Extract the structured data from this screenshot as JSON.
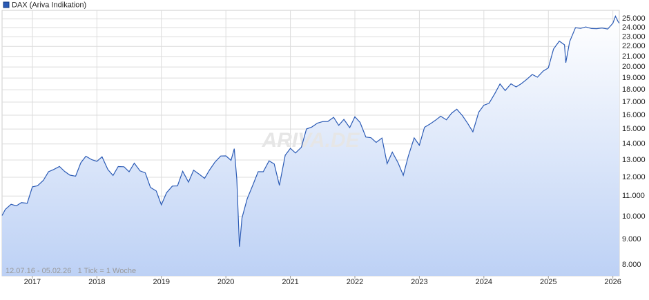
{
  "chart_data": {
    "type": "line",
    "legend": "DAX (Ariva Indikation)",
    "watermark": "ARIVA.DE",
    "footnote": "12.07.16 - 05.02.26   1 Tick = 1 Woche",
    "log_scale": true,
    "grid": true,
    "color": "#2a5ab5",
    "fill_gradient": [
      "#ffffff",
      "#bdd1f5"
    ],
    "xlim": [
      2016.53,
      2026.1
    ],
    "xticks": [
      2017,
      2018,
      2019,
      2020,
      2021,
      2022,
      2023,
      2024,
      2025,
      2026
    ],
    "ylim": [
      7600,
      26000
    ],
    "yticks": [
      {
        "value": 8000,
        "label": "8.000"
      },
      {
        "value": 9000,
        "label": "9.000"
      },
      {
        "value": 10000,
        "label": "10.000"
      },
      {
        "value": 11000,
        "label": "11.000"
      },
      {
        "value": 12000,
        "label": "12.000"
      },
      {
        "value": 13000,
        "label": "13.000"
      },
      {
        "value": 14000,
        "label": "14.000"
      },
      {
        "value": 15000,
        "label": "15.000"
      },
      {
        "value": 16000,
        "label": "16.000"
      },
      {
        "value": 17000,
        "label": "17.000"
      },
      {
        "value": 18000,
        "label": "18.000"
      },
      {
        "value": 19000,
        "label": "19.000"
      },
      {
        "value": 20000,
        "label": "20.000"
      },
      {
        "value": 21000,
        "label": "21.000"
      },
      {
        "value": 22000,
        "label": "22.000"
      },
      {
        "value": 23000,
        "label": "23.000"
      },
      {
        "value": 24000,
        "label": "24.000"
      },
      {
        "value": 25000,
        "label": "25.000"
      }
    ],
    "x": [
      2016.53,
      2016.58,
      2016.67,
      2016.75,
      2016.83,
      2016.92,
      2017.0,
      2017.08,
      2017.17,
      2017.25,
      2017.33,
      2017.42,
      2017.5,
      2017.58,
      2017.67,
      2017.75,
      2017.83,
      2017.92,
      2018.0,
      2018.08,
      2018.17,
      2018.25,
      2018.33,
      2018.42,
      2018.5,
      2018.58,
      2018.67,
      2018.75,
      2018.83,
      2018.92,
      2019.0,
      2019.08,
      2019.17,
      2019.25,
      2019.33,
      2019.42,
      2019.5,
      2019.58,
      2019.67,
      2019.75,
      2019.83,
      2019.92,
      2020.0,
      2020.08,
      2020.13,
      2020.17,
      2020.21,
      2020.25,
      2020.33,
      2020.42,
      2020.5,
      2020.58,
      2020.67,
      2020.75,
      2020.83,
      2020.92,
      2021.0,
      2021.08,
      2021.17,
      2021.25,
      2021.33,
      2021.42,
      2021.5,
      2021.58,
      2021.67,
      2021.75,
      2021.83,
      2021.92,
      2022.0,
      2022.08,
      2022.17,
      2022.25,
      2022.33,
      2022.42,
      2022.5,
      2022.58,
      2022.67,
      2022.75,
      2022.83,
      2022.92,
      2023.0,
      2023.08,
      2023.17,
      2023.25,
      2023.33,
      2023.42,
      2023.5,
      2023.58,
      2023.67,
      2023.75,
      2023.83,
      2023.92,
      2024.0,
      2024.08,
      2024.17,
      2024.25,
      2024.33,
      2024.42,
      2024.5,
      2024.58,
      2024.67,
      2024.75,
      2024.83,
      2024.92,
      2025.0,
      2025.08,
      2025.17,
      2025.25,
      2025.27,
      2025.33,
      2025.42,
      2025.5,
      2025.58,
      2025.67,
      2025.75,
      2025.83,
      2025.92,
      2026.0,
      2026.04,
      2026.08,
      2026.1
    ],
    "values": [
      10050,
      10340,
      10590,
      10510,
      10670,
      10640,
      11480,
      11540,
      11830,
      12310,
      12440,
      12620,
      12330,
      12120,
      12060,
      12830,
      13230,
      13020,
      12920,
      13190,
      12440,
      12100,
      12610,
      12600,
      12310,
      12810,
      12360,
      12250,
      11450,
      11260,
      10560,
      11170,
      11520,
      11530,
      12340,
      11730,
      12400,
      12190,
      11940,
      12430,
      12870,
      13240,
      13250,
      12980,
      13700,
      11890,
      8700,
      9940,
      10860,
      11590,
      12310,
      12310,
      12950,
      12760,
      11560,
      13290,
      13720,
      13430,
      13790,
      15010,
      15140,
      15420,
      15530,
      15540,
      15840,
      15260,
      15690,
      15100,
      15880,
      15470,
      14460,
      14410,
      14100,
      14390,
      12780,
      13480,
      12830,
      12110,
      13250,
      14400,
      13920,
      15130,
      15370,
      15630,
      15920,
      15660,
      16150,
      16450,
      15950,
      15390,
      14810,
      16220,
      16750,
      16900,
      17680,
      18490,
      17930,
      18500,
      18240,
      18510,
      18910,
      19320,
      19080,
      19630,
      19910,
      21730,
      22550,
      22160,
      20400,
      22500,
      23990,
      23910,
      24070,
      23900,
      23880,
      23960,
      23840,
      24490,
      25300,
      24700,
      24500
    ]
  }
}
